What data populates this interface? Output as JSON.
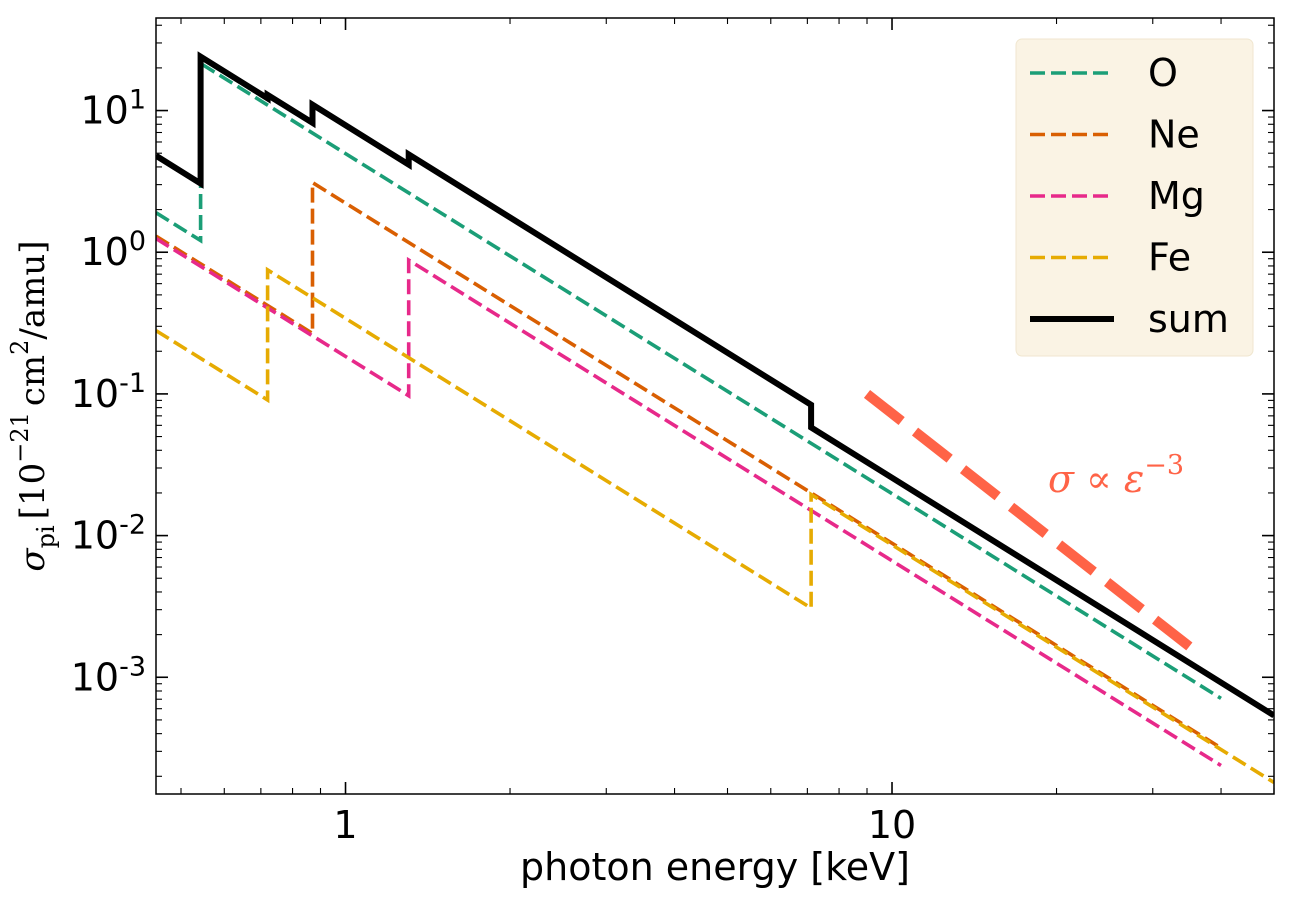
{
  "chart_data": {
    "type": "line",
    "xscale": "log",
    "yscale": "log",
    "xlim": [
      0.45,
      50
    ],
    "ylim": [
      0.00015,
      45
    ],
    "xlabel": "photon energy [keV]",
    "ylabel": {
      "symbol": "σ",
      "subscript": "pi",
      "bracket_open": "[",
      "factor": "10",
      "exponent": "−21",
      "unit": "cm",
      "unit_exp": "2",
      "rest": "/amu]"
    },
    "xticks": [
      {
        "value": 1,
        "label": "1"
      },
      {
        "value": 10,
        "label": "10"
      }
    ],
    "yticks": [
      {
        "value": 10,
        "base": "10",
        "exp": "1"
      },
      {
        "value": 1,
        "base": "10",
        "exp": "0"
      },
      {
        "value": 0.1,
        "base": "10",
        "exp": "-1"
      },
      {
        "value": 0.01,
        "base": "10",
        "exp": "-2"
      },
      {
        "value": 0.001,
        "base": "10",
        "exp": "-3"
      }
    ],
    "legend_position": "top-right",
    "series": [
      {
        "name": "O",
        "color": "#1b9e77",
        "style": "dashed",
        "power": -2.4,
        "segments": [
          {
            "x0": 0.45,
            "x1": 0.543,
            "y0": 1.9
          },
          {
            "x0": 0.543,
            "x1": 40,
            "y0": 21.5
          }
        ]
      },
      {
        "name": "Ne",
        "color": "#d95f02",
        "style": "dashed",
        "power": -2.4,
        "segments": [
          {
            "x0": 0.45,
            "x1": 0.87,
            "y0": 1.3
          },
          {
            "x0": 0.87,
            "x1": 40,
            "y0": 3.1
          }
        ]
      },
      {
        "name": "Mg",
        "color": "#e7298a",
        "style": "dashed",
        "power": -2.4,
        "segments": [
          {
            "x0": 0.45,
            "x1": 1.305,
            "y0": 1.25
          },
          {
            "x0": 1.305,
            "x1": 40,
            "y0": 0.88
          }
        ]
      },
      {
        "name": "Fe",
        "color": "#e6ab02",
        "style": "dashed",
        "power": -2.4,
        "segments": [
          {
            "x0": 0.45,
            "x1": 0.72,
            "y0": 0.28
          },
          {
            "x0": 0.72,
            "x1": 7.11,
            "y0": 0.75
          },
          {
            "x0": 7.11,
            "x1": 50,
            "y0": 0.0195
          }
        ]
      },
      {
        "name": "sum",
        "color": "#000000",
        "style": "solid",
        "power": -2.4,
        "segments": [
          {
            "x0": 0.45,
            "x1": 0.543,
            "y0": 4.8
          },
          {
            "x0": 0.543,
            "x1": 0.72,
            "y0": 24.0
          },
          {
            "x0": 0.72,
            "x1": 0.87,
            "y0": 12.9
          },
          {
            "x0": 0.87,
            "x1": 1.305,
            "y0": 11.0
          },
          {
            "x0": 1.305,
            "x1": 7.11,
            "y0": 4.9
          },
          {
            "x0": 7.11,
            "x1": 50,
            "y0": 0.058
          }
        ]
      }
    ],
    "reference_line": {
      "label": "σ ∝ ε⁻³",
      "label_base": "σ ∝ ε",
      "label_exp": "−3",
      "color": "#ff6347",
      "x": [
        9,
        35
      ],
      "y": [
        0.1,
        0.00165
      ]
    }
  }
}
